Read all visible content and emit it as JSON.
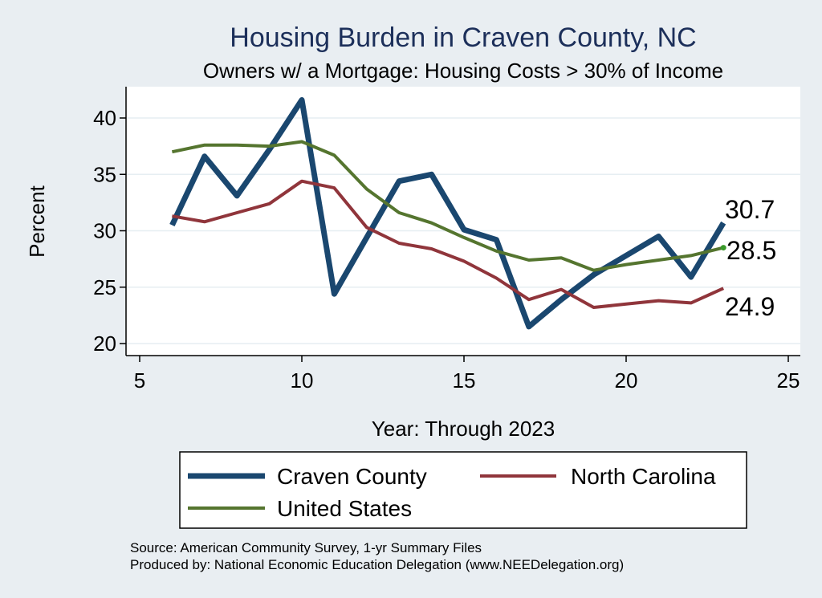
{
  "chart_data": {
    "type": "line",
    "title": "Housing Burden in Craven County, NC",
    "subtitle": "Owners w/ a Mortgage: Housing Costs > 30% of Income",
    "xlabel": "Year: Through 2023",
    "ylabel": "Percent",
    "xlim": [
      5,
      25
    ],
    "ylim": [
      19.5,
      42.5
    ],
    "xticks": [
      5,
      10,
      15,
      20,
      25
    ],
    "yticks": [
      20,
      25,
      30,
      35,
      40
    ],
    "grid": true,
    "series": [
      {
        "name": "Craven County",
        "color": "#1a476f",
        "x": [
          6,
          7,
          8,
          9,
          10,
          11,
          12,
          13,
          14,
          15,
          16,
          17,
          18,
          19,
          20,
          21,
          22,
          23
        ],
        "values": [
          30.5,
          36.6,
          33.1,
          37.2,
          41.6,
          24.4,
          29.4,
          34.4,
          35.0,
          30.1,
          29.2,
          21.5,
          23.9,
          26.1,
          27.8,
          29.5,
          25.9,
          30.7
        ],
        "end_label": "30.7"
      },
      {
        "name": "North Carolina",
        "color": "#90353b",
        "x": [
          6,
          7,
          8,
          9,
          10,
          11,
          12,
          13,
          14,
          15,
          16,
          17,
          18,
          19,
          20,
          21,
          22,
          23
        ],
        "values": [
          31.3,
          30.8,
          31.6,
          32.4,
          34.4,
          33.8,
          30.3,
          28.9,
          28.4,
          27.3,
          25.8,
          23.9,
          24.8,
          23.2,
          23.5,
          23.8,
          23.6,
          24.9
        ],
        "end_label": "24.9"
      },
      {
        "name": "United States",
        "color": "#55752f",
        "x": [
          6,
          7,
          8,
          9,
          10,
          11,
          12,
          13,
          14,
          15,
          16,
          17,
          18,
          19,
          20,
          21,
          22,
          23
        ],
        "values": [
          37.0,
          37.6,
          37.6,
          37.5,
          37.9,
          36.7,
          33.7,
          31.6,
          30.7,
          29.4,
          28.2,
          27.4,
          27.6,
          26.5,
          27.0,
          27.4,
          27.8,
          28.5
        ],
        "end_label": "28.5"
      }
    ],
    "legend": [
      "Craven County",
      "North Carolina",
      "United States"
    ],
    "notes": [
      "Source: American Community Survey, 1-yr Summary Files",
      "Produced by: National Economic Education Delegation (www.NEEDelegation.org)"
    ]
  }
}
